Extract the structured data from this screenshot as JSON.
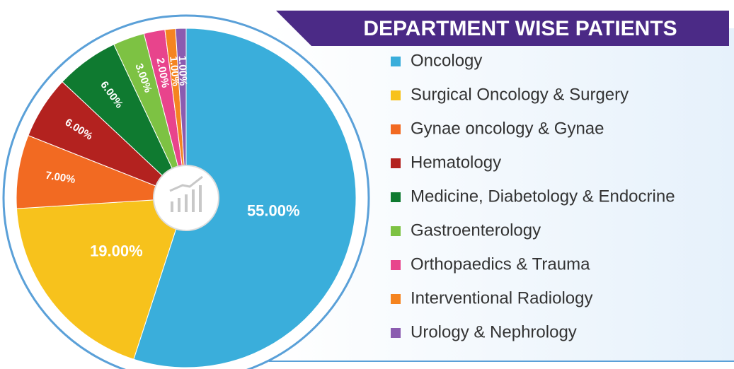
{
  "chart_data": {
    "type": "pie",
    "title": "DEPARTMENT WISE PATIENTS",
    "categories": [
      "Oncology",
      "Surgical Oncology & Surgery",
      "Gynae oncology & Gynae",
      "Hematology",
      "Medicine, Diabetology & Endocrine",
      "Gastroenterology",
      "Orthopaedics & Trauma",
      "Interventional Radiology",
      "Urology & Nephrology"
    ],
    "values": [
      55,
      19,
      7,
      6,
      6,
      3,
      2,
      1,
      1
    ],
    "value_labels": [
      "55.00%",
      "19.00%",
      "7.00%",
      "6.00%",
      "6.00%",
      "3.00%",
      "2.00%",
      "1.00%",
      "1.00%"
    ],
    "colors": [
      "#3aaedb",
      "#f7c21c",
      "#f26a22",
      "#b3221f",
      "#0f7a30",
      "#7dc243",
      "#e8448c",
      "#f58420",
      "#8b5cb0"
    ]
  }
}
